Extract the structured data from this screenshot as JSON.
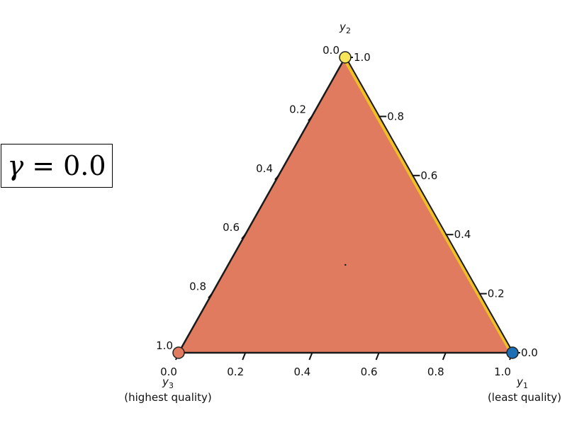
{
  "gamma_label": {
    "symbol": "γ",
    "operator": "=",
    "value": "0.0"
  },
  "chart_data": {
    "type": "ternary",
    "axes": {
      "y1": {
        "label": "y",
        "subscript": "1",
        "description": "(least quality)"
      },
      "y2": {
        "label": "y",
        "subscript": "2",
        "description": ""
      },
      "y3": {
        "label": "y",
        "subscript": "3",
        "description": "(highest quality)"
      }
    },
    "ticks": {
      "bottom": [
        "0.0",
        "0.2",
        "0.4",
        "0.6",
        "0.8",
        "1.0"
      ],
      "left": [
        "1.0",
        "0.8",
        "0.6",
        "0.4",
        "0.2",
        "0.0"
      ],
      "right": [
        "0.0",
        "0.2",
        "0.4",
        "0.6",
        "0.8",
        "1.0"
      ]
    },
    "fill_color": "#e07b60",
    "edge_color": "#1a1a1a",
    "highlight_edge_color": "#f0c020",
    "vertices": [
      {
        "name": "y1",
        "color": "#1f6fb4"
      },
      {
        "name": "y2",
        "color": "#f7e55a"
      },
      {
        "name": "y3",
        "color": "#e07b60"
      }
    ],
    "center_point": {
      "y1": 0.3333,
      "y2": 0.3333,
      "y3": 0.3333
    }
  }
}
